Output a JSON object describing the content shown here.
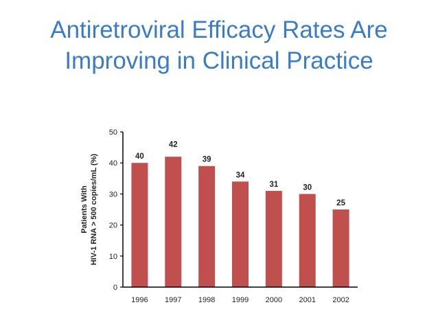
{
  "title_line1": "Antiretroviral Efficacy Rates Are",
  "title_line2": "Improving in Clinical Practice",
  "chart_data": {
    "type": "bar",
    "title": "Antiretroviral Efficacy Rates Are Improving in Clinical Practice",
    "categories": [
      "1996",
      "1997",
      "1998",
      "1999",
      "2000",
      "2001",
      "2002"
    ],
    "values": [
      40,
      42,
      39,
      34,
      31,
      30,
      25
    ],
    "data_labels": [
      "40",
      "42",
      "39",
      "34",
      "31",
      "30",
      "25"
    ],
    "xlabel": "",
    "ylabel_line1": "Patients With",
    "ylabel_line2": "HIV-1 RNA > 500 copies/mL (%)",
    "ylim": [
      0,
      50
    ],
    "yticks": [
      0,
      10,
      20,
      30,
      40,
      50
    ],
    "grid": false,
    "legend": "none",
    "bar_color": "#c0504d"
  }
}
